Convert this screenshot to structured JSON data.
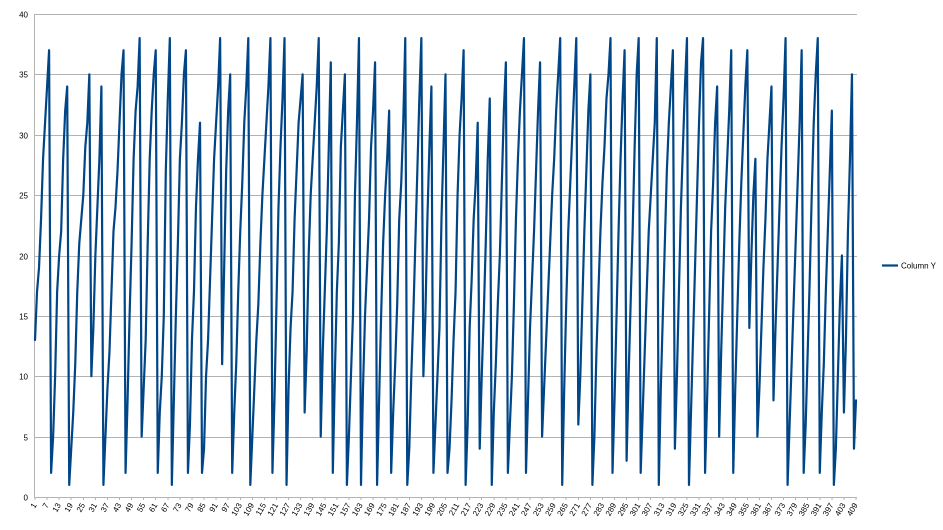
{
  "chart_data": {
    "type": "line",
    "title": "",
    "xlabel": "",
    "ylabel": "",
    "ylim": [
      0,
      40
    ],
    "y_ticks": [
      "0",
      "5",
      "10",
      "15",
      "20",
      "25",
      "30",
      "35",
      "40"
    ],
    "x_start": 1,
    "x_tick_step": 6,
    "grid": "horizontal",
    "legend_position": "right",
    "colors": {
      "series": "#004586",
      "grid": "#b3b3b3",
      "background": "#ffffff"
    },
    "series": [
      {
        "name": "Column Y",
        "values": [
          13,
          17,
          19,
          23,
          28,
          31,
          34,
          37,
          2,
          5,
          10,
          17,
          20,
          22,
          28,
          32,
          34,
          1,
          4,
          7,
          11,
          17,
          21,
          23,
          25,
          29,
          31,
          35,
          10,
          14,
          20,
          24,
          28,
          34,
          1,
          5,
          9,
          12,
          17,
          22,
          24,
          27,
          31,
          35,
          37,
          2,
          8,
          15,
          21,
          28,
          32,
          34,
          38,
          5,
          9,
          13,
          21,
          28,
          32,
          35,
          37,
          2,
          7,
          10,
          15,
          27,
          33,
          38,
          1,
          8,
          15,
          21,
          28,
          31,
          35,
          37,
          2,
          6,
          13,
          17,
          24,
          28,
          31,
          2,
          4,
          10,
          13,
          18,
          23,
          28,
          31,
          34,
          38,
          11,
          19,
          27,
          32,
          35,
          2,
          7,
          11,
          17,
          22,
          26,
          31,
          34,
          38,
          1,
          5,
          9,
          13,
          16,
          21,
          25,
          28,
          31,
          34,
          38,
          2,
          8,
          16,
          24,
          29,
          33,
          38,
          1,
          9,
          14,
          17,
          23,
          27,
          31,
          33,
          35,
          7,
          12,
          20,
          25,
          28,
          31,
          34,
          38,
          5,
          12,
          17,
          22,
          29,
          36,
          2,
          10,
          17,
          21,
          29,
          32,
          35,
          1,
          5,
          10,
          15,
          25,
          31,
          38,
          1,
          9,
          15,
          19,
          23,
          29,
          32,
          36,
          1,
          8,
          15,
          21,
          25,
          28,
          32,
          2,
          7,
          11,
          16,
          23,
          26,
          31,
          38,
          1,
          4,
          10,
          15,
          21,
          27,
          33,
          38,
          10,
          15,
          23,
          29,
          34,
          2,
          6,
          10,
          14,
          23,
          29,
          35,
          2,
          4,
          8,
          13,
          17,
          25,
          30,
          33,
          37,
          1,
          6,
          14,
          18,
          23,
          26,
          31,
          4,
          10,
          15,
          21,
          28,
          33,
          1,
          7,
          11,
          16,
          20,
          26,
          32,
          36,
          2,
          6,
          10,
          16,
          23,
          28,
          32,
          35,
          38,
          2,
          8,
          14,
          18,
          22,
          27,
          32,
          36,
          5,
          9,
          13,
          17,
          21,
          25,
          28,
          32,
          35,
          38,
          1,
          9,
          16,
          22,
          26,
          30,
          34,
          38,
          6,
          10,
          16,
          22,
          27,
          32,
          35,
          1,
          5,
          12,
          17,
          22,
          26,
          29,
          33,
          35,
          38,
          2,
          8,
          15,
          22,
          28,
          33,
          37,
          3,
          10,
          16,
          22,
          29,
          35,
          38,
          2,
          7,
          12,
          17,
          22,
          25,
          28,
          31,
          38,
          1,
          9,
          15,
          21,
          27,
          31,
          34,
          37,
          4,
          10,
          17,
          24,
          29,
          34,
          38,
          1,
          7,
          13,
          19,
          25,
          31,
          36,
          38,
          2,
          8,
          15,
          22,
          26,
          31,
          34,
          5,
          12,
          18,
          24,
          28,
          32,
          37,
          2,
          9,
          15,
          21,
          26,
          30,
          34,
          37,
          14,
          20,
          25,
          28,
          5,
          9,
          14,
          19,
          23,
          28,
          31,
          34,
          8,
          14,
          19,
          24,
          29,
          33,
          38,
          1,
          6,
          11,
          16,
          21,
          26,
          31,
          37,
          2,
          6,
          12,
          18,
          25,
          31,
          35,
          38,
          2,
          7,
          11,
          17,
          22,
          27,
          32,
          1,
          4,
          10,
          16,
          20,
          7,
          13,
          22,
          28,
          35,
          4,
          8
        ]
      }
    ]
  }
}
